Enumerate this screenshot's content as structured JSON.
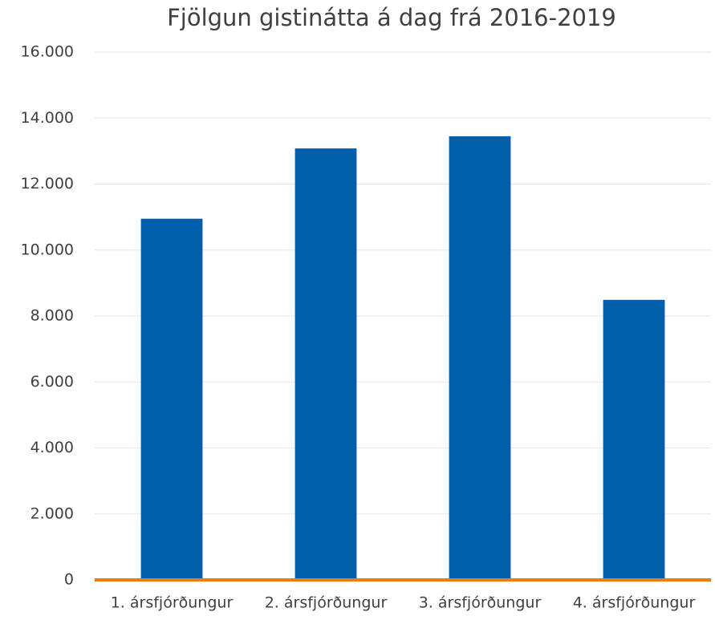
{
  "chart_data": {
    "type": "bar",
    "title": "Fjölgun gistinátta á dag frá 2016-2019",
    "categories": [
      "1. ársfjórðungur",
      "2. ársfjórðungur",
      "3. ársfjórðungur",
      "4. ársfjórðungur"
    ],
    "values": [
      10950,
      13080,
      13450,
      8490
    ],
    "color": "#005eaa",
    "axis_color": "#f07c0a",
    "ylim": [
      0,
      16000
    ],
    "yticks": [
      0,
      {
        "value": 2000,
        "label": "2.000"
      },
      {
        "value": 4000,
        "label": "4.000"
      },
      {
        "value": 6000,
        "label": "6.000"
      },
      {
        "value": 8000,
        "label": "8.000"
      },
      {
        "value": 10000,
        "label": "10.000"
      },
      {
        "value": 12000,
        "label": "12.000"
      },
      {
        "value": 14000,
        "label": "14.000"
      },
      {
        "value": 16000,
        "label": "16.000"
      }
    ],
    "grid": true
  }
}
